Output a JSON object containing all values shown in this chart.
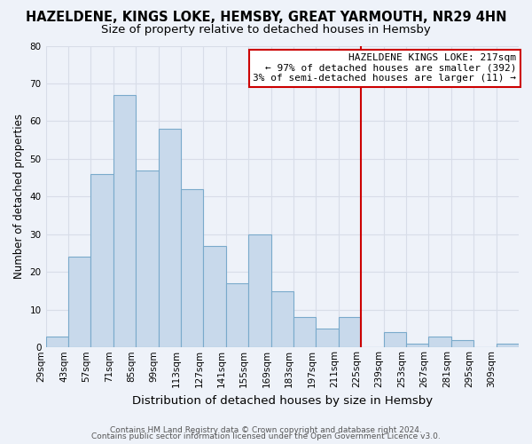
{
  "title": "HAZELDENE, KINGS LOKE, HEMSBY, GREAT YARMOUTH, NR29 4HN",
  "subtitle": "Size of property relative to detached houses in Hemsby",
  "xlabel": "Distribution of detached houses by size in Hemsby",
  "ylabel": "Number of detached properties",
  "bin_labels": [
    "29sqm",
    "43sqm",
    "57sqm",
    "71sqm",
    "85sqm",
    "99sqm",
    "113sqm",
    "127sqm",
    "141sqm",
    "155sqm",
    "169sqm",
    "183sqm",
    "197sqm",
    "211sqm",
    "225sqm",
    "239sqm",
    "253sqm",
    "267sqm",
    "281sqm",
    "295sqm",
    "309sqm"
  ],
  "bar_heights": [
    3,
    24,
    46,
    67,
    47,
    58,
    42,
    27,
    17,
    30,
    15,
    8,
    5,
    8,
    0,
    4,
    1,
    3,
    2,
    0,
    1
  ],
  "bar_color": "#c8d9eb",
  "bar_edgecolor": "#7aaacb",
  "ylim": [
    0,
    80
  ],
  "yticks": [
    0,
    10,
    20,
    30,
    40,
    50,
    60,
    70,
    80
  ],
  "vline_index": 14,
  "vline_color": "#cc0000",
  "annotation_title": "HAZELDENE KINGS LOKE: 217sqm",
  "annotation_line1": "← 97% of detached houses are smaller (392)",
  "annotation_line2": "3% of semi-detached houses are larger (11) →",
  "annotation_box_facecolor": "#ffffff",
  "annotation_box_edgecolor": "#cc0000",
  "n_bins": 21,
  "footer1": "Contains HM Land Registry data © Crown copyright and database right 2024.",
  "footer2": "Contains public sector information licensed under the Open Government Licence v3.0.",
  "background_color": "#eef2f9",
  "grid_color": "#d8dde8",
  "title_fontsize": 10.5,
  "subtitle_fontsize": 9.5,
  "xlabel_fontsize": 9.5,
  "ylabel_fontsize": 8.5,
  "tick_fontsize": 7.5,
  "annotation_fontsize": 8,
  "footer_fontsize": 6.5
}
